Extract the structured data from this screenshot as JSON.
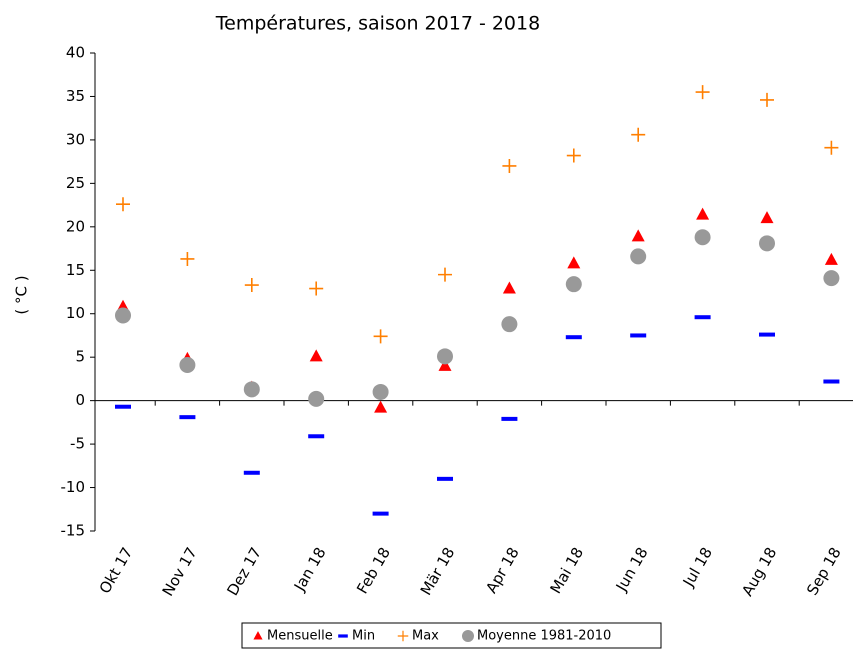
{
  "chart_data": {
    "type": "scatter",
    "title": "Températures, saison 2017 - 2018",
    "y_label": "( °C )",
    "categories": [
      "Okt 17",
      "Nov 17",
      "Dez 17",
      "Jan 18",
      "Feb 18",
      "Mär 18",
      "Apr 18",
      "Mai 18",
      "Jun 18",
      "Jul 18",
      "Aug 18",
      "Sep 18"
    ],
    "series": [
      {
        "name": "Mensuelle",
        "color": "#ff0000",
        "marker": "triangle",
        "values": [
          10.8,
          4.8,
          1.5,
          5.1,
          -0.8,
          4.0,
          12.9,
          15.8,
          18.9,
          21.4,
          21.0,
          16.2
        ]
      },
      {
        "name": "Min",
        "color": "#0000ff",
        "marker": "dash",
        "values": [
          -0.7,
          -1.9,
          -8.3,
          -4.1,
          -13.0,
          -9.0,
          -2.1,
          7.3,
          7.5,
          9.6,
          7.6,
          2.2
        ]
      },
      {
        "name": "Max",
        "color": "#ff7f00",
        "marker": "plus",
        "values": [
          22.6,
          16.3,
          13.3,
          12.9,
          7.4,
          14.5,
          27.0,
          28.2,
          30.6,
          35.5,
          34.6,
          29.1
        ]
      },
      {
        "name": "Moyenne 1981-2010",
        "color": "#999999",
        "marker": "circle",
        "values": [
          9.8,
          4.1,
          1.3,
          0.2,
          1.0,
          5.1,
          8.8,
          13.4,
          16.6,
          18.8,
          18.1,
          14.1
        ]
      }
    ],
    "ylim": [
      -15,
      40
    ],
    "yticks": [
      -15,
      -10,
      -5,
      0,
      5,
      10,
      15,
      20,
      25,
      30,
      35,
      40
    ],
    "grid": false,
    "legend": "bottom"
  }
}
